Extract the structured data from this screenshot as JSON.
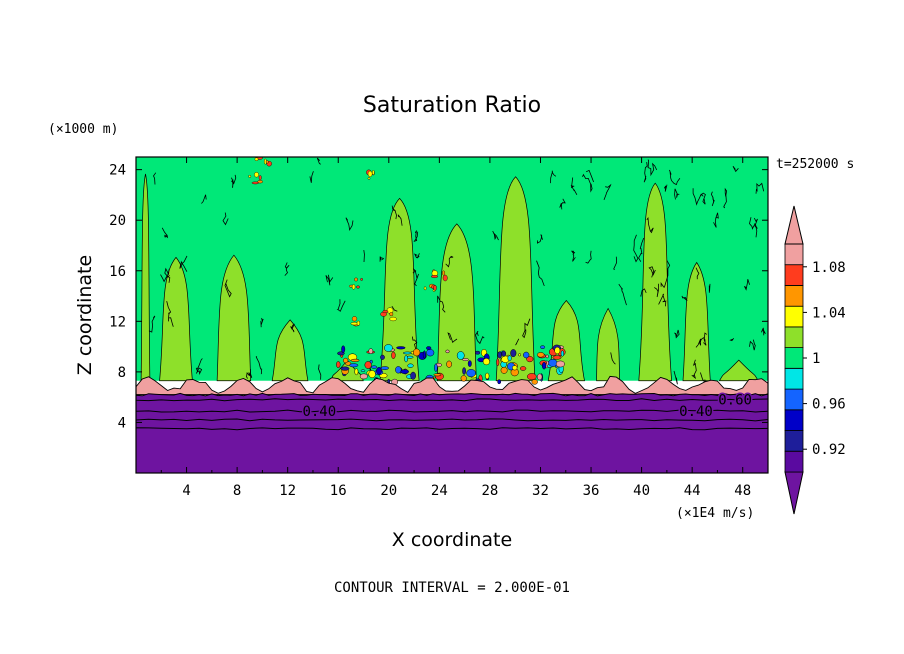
{
  "chart_data": {
    "type": "heatmap",
    "title": "Saturation Ratio",
    "xlabel": "X coordinate",
    "ylabel": "Z coordinate",
    "x_unit": "(×1E4 m/s)",
    "y_unit": "(×1000 m)",
    "time_label": "t=252000 s",
    "footer": "CONTOUR INTERVAL = 2.000E-01",
    "xlim": [
      0,
      50
    ],
    "ylim": [
      0,
      25
    ],
    "xticks": [
      4,
      8,
      12,
      16,
      20,
      24,
      28,
      32,
      36,
      40,
      44,
      48
    ],
    "yticks": [
      4,
      8,
      12,
      16,
      20,
      24
    ],
    "grid": false,
    "colorbar": {
      "bounds": [
        0.9,
        0.92,
        0.94,
        0.96,
        0.98,
        1.0,
        1.02,
        1.04,
        1.06,
        1.08,
        1.1
      ],
      "tick_labels": [
        "0.92",
        "0.96",
        "1",
        "1.04",
        "1.08"
      ],
      "tick_values": [
        0.92,
        0.96,
        1.0,
        1.04,
        1.08
      ],
      "colors": [
        "#5a0aa0",
        "#1e1e9a",
        "#0000c8",
        "#1464ff",
        "#00e6e6",
        "#00e878",
        "#8ee02a",
        "#ffff00",
        "#ff9600",
        "#ff3c1e",
        "#f0a0a0"
      ],
      "under_color": "#6e14a0",
      "over_color": "#f0a0a0"
    },
    "layers": [
      {
        "z_range": [
          0,
          6.2
        ],
        "value": "below 0.90",
        "color": "#6e14a0"
      },
      {
        "z_range": [
          6.2,
          7.3
        ],
        "value": "above 1.10",
        "color": "#f0a0a0"
      },
      {
        "z_range": [
          7.3,
          25
        ],
        "value": "0.98 to 1.02",
        "colors": [
          "#00e878",
          "#8ee02a"
        ]
      }
    ],
    "contour_labels": [
      {
        "text": "0.40",
        "x": 14.5,
        "z": 4.9
      },
      {
        "text": "0.40",
        "x": 44.3,
        "z": 4.9
      },
      {
        "text": "0.60",
        "x": 47.4,
        "z": 5.8
      }
    ]
  }
}
